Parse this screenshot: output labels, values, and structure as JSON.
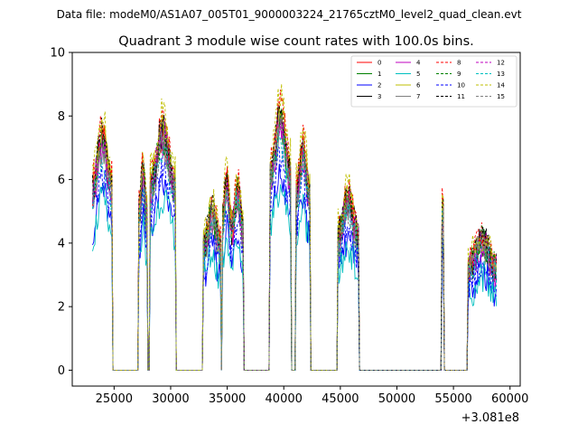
{
  "figure": {
    "suptitle": "Data file: modeM0/AS1A07_005T01_9000003224_21765cztM0_level2_quad_clean.evt",
    "offset_label": "+3.081e8"
  },
  "chart_data": {
    "type": "line",
    "title": "Quadrant 3 module wise count rates with 100.0s bins.",
    "xlabel": "",
    "ylabel": "",
    "x_offset": 308100000,
    "xlim": [
      21300,
      60900
    ],
    "ylim": [
      -0.5,
      10
    ],
    "xticks": [
      25000,
      30000,
      35000,
      40000,
      45000,
      50000,
      55000,
      60000
    ],
    "xtick_labels": [
      "25000",
      "30000",
      "35000",
      "40000",
      "45000",
      "50000",
      "55000",
      "60000"
    ],
    "yticks": [
      0,
      2,
      4,
      6,
      8,
      10
    ],
    "ytick_labels": [
      "0",
      "2",
      "4",
      "6",
      "8",
      "10"
    ],
    "grid": false,
    "legend": {
      "placement": "top-right",
      "columns": 4
    },
    "segments": [
      {
        "x0": 23100,
        "x1": 24800,
        "base": 6.5
      },
      {
        "x0": 27200,
        "x1": 27900,
        "base": 5.5
      },
      {
        "x0": 28200,
        "x1": 30400,
        "base": 6.6
      },
      {
        "x0": 32900,
        "x1": 34400,
        "base": 4.4
      },
      {
        "x0": 34600,
        "x1": 35300,
        "base": 5.3
      },
      {
        "x0": 35400,
        "x1": 36400,
        "base": 5.0
      },
      {
        "x0": 38800,
        "x1": 40600,
        "base": 7.0
      },
      {
        "x0": 41100,
        "x1": 42300,
        "base": 6.2
      },
      {
        "x0": 44800,
        "x1": 46600,
        "base": 4.7
      },
      {
        "x0": 54000,
        "x1": 54100,
        "base": 5.6
      },
      {
        "x0": 56300,
        "x1": 58800,
        "base": 3.6
      }
    ],
    "series": [
      {
        "name": "0",
        "color": "#ff0000",
        "dash": "solid",
        "factor": 1.0
      },
      {
        "name": "1",
        "color": "#008000",
        "dash": "solid",
        "factor": 0.98
      },
      {
        "name": "2",
        "color": "#0000ff",
        "dash": "solid",
        "factor": 0.78
      },
      {
        "name": "3",
        "color": "#000000",
        "dash": "solid",
        "factor": 1.01
      },
      {
        "name": "4",
        "color": "#bf00bf",
        "dash": "solid",
        "factor": 0.97
      },
      {
        "name": "5",
        "color": "#00bfbf",
        "dash": "solid",
        "factor": 0.74
      },
      {
        "name": "6",
        "color": "#bfbf00",
        "dash": "solid",
        "factor": 1.04
      },
      {
        "name": "7",
        "color": "#808080",
        "dash": "solid",
        "factor": 0.96
      },
      {
        "name": "8",
        "color": "#ff0000",
        "dash": "dashed",
        "factor": 1.06
      },
      {
        "name": "9",
        "color": "#008000",
        "dash": "dashed",
        "factor": 0.99
      },
      {
        "name": "10",
        "color": "#0000ff",
        "dash": "dashed",
        "factor": 0.85
      },
      {
        "name": "11",
        "color": "#000000",
        "dash": "dashed",
        "factor": 1.02
      },
      {
        "name": "12",
        "color": "#bf00bf",
        "dash": "dashed",
        "factor": 1.0
      },
      {
        "name": "13",
        "color": "#00bfbf",
        "dash": "dashed",
        "factor": 0.93
      },
      {
        "name": "14",
        "color": "#bfbf00",
        "dash": "dashed",
        "factor": 1.1
      },
      {
        "name": "15",
        "color": "#808080",
        "dash": "dashed",
        "factor": 0.97
      }
    ]
  }
}
